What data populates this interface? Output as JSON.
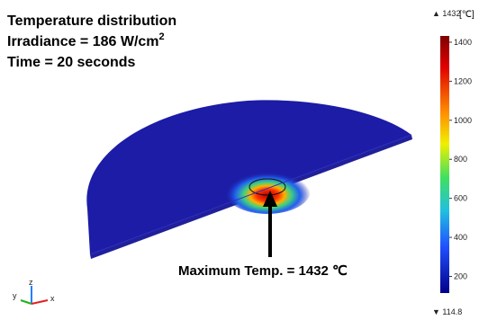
{
  "title_lines": [
    "Temperature distribution",
    {
      "text": "Irradiance = 186 W/cm",
      "superscript": "2"
    },
    "Time = 20 seconds"
  ],
  "annotation": "Maximum Temp. = 1432 ℃",
  "colorbar": {
    "max": 1432,
    "min": 114.8,
    "unit": "[℃]",
    "ticks": [
      1400,
      1200,
      1000,
      800,
      600,
      400,
      200
    ]
  },
  "axes_triad": {
    "z": "z",
    "y": "y",
    "x": "x"
  }
}
